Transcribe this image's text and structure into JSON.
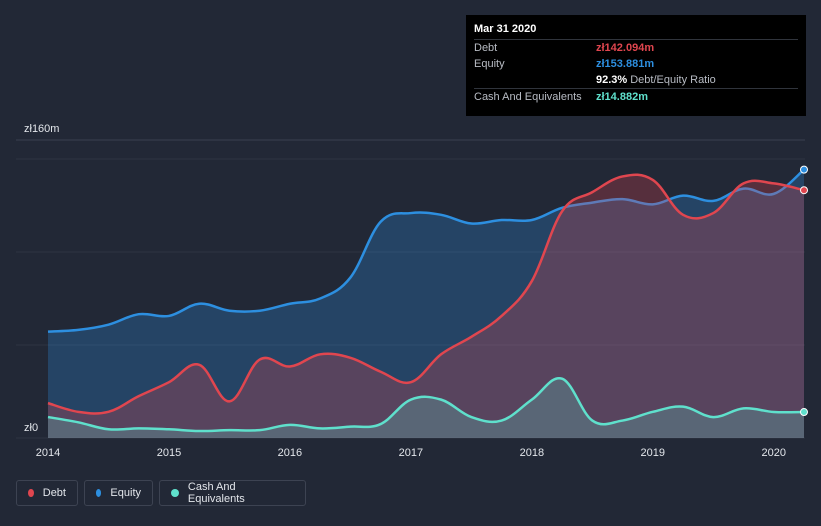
{
  "tooltip": {
    "date": "Mar 31 2020",
    "debt_label": "Debt",
    "debt_value": "zł142.094m",
    "equity_label": "Equity",
    "equity_value": "zł153.881m",
    "ratio_value": "92.3%",
    "ratio_label": "Debt/Equity Ratio",
    "cash_label": "Cash And Equivalents",
    "cash_value": "zł14.882m"
  },
  "legend": {
    "debt": "Debt",
    "equity": "Equity",
    "cash": "Cash And Equivalents"
  },
  "colors": {
    "debt": "#e0464f",
    "equity": "#2d8fe0",
    "cash": "#5fe0cc",
    "background": "#222836"
  },
  "chart_data": {
    "type": "area",
    "y_tick_labels": [
      "zł160m",
      "zł0"
    ],
    "ylim": [
      0,
      160
    ],
    "xlim": [
      2014,
      2020.25
    ],
    "x_ticks": [
      2014,
      2015,
      2016,
      2017,
      2018,
      2019,
      2020
    ],
    "x_tick_labels": [
      "2014",
      "2015",
      "2016",
      "2017",
      "2018",
      "2019",
      "2020"
    ],
    "series": [
      {
        "name": "Debt",
        "color": "#e0464f",
        "x": [
          2014,
          2014.25,
          2014.5,
          2014.75,
          2015,
          2015.25,
          2015.5,
          2015.75,
          2016,
          2016.25,
          2016.5,
          2016.75,
          2017,
          2017.25,
          2017.5,
          2017.75,
          2018,
          2018.25,
          2018.5,
          2018.75,
          2019,
          2019.25,
          2019.5,
          2019.75,
          2020,
          2020.25
        ],
        "values": [
          20,
          15,
          15,
          24,
          32,
          42,
          21,
          45,
          41,
          48,
          46,
          38,
          32,
          48,
          58,
          70,
          90,
          130,
          141,
          150,
          148,
          128,
          129,
          146,
          146,
          142.1
        ]
      },
      {
        "name": "Equity",
        "color": "#2d8fe0",
        "x": [
          2014,
          2014.25,
          2014.5,
          2014.75,
          2015,
          2015.25,
          2015.5,
          2015.75,
          2016,
          2016.25,
          2016.5,
          2016.75,
          2017,
          2017.25,
          2017.5,
          2017.75,
          2018,
          2018.25,
          2018.5,
          2018.75,
          2019,
          2019.25,
          2019.5,
          2019.75,
          2020,
          2020.25
        ],
        "values": [
          61,
          62,
          65,
          71,
          70,
          77,
          73,
          73,
          77,
          80,
          92,
          124,
          129,
          128,
          123,
          125,
          125,
          132,
          135,
          137,
          134,
          139,
          136,
          143,
          140,
          153.9
        ]
      },
      {
        "name": "Cash And Equivalents",
        "color": "#5fe0cc",
        "x": [
          2014,
          2014.25,
          2014.5,
          2014.75,
          2015,
          2015.25,
          2015.5,
          2015.75,
          2016,
          2016.25,
          2016.5,
          2016.75,
          2017,
          2017.25,
          2017.5,
          2017.75,
          2018,
          2018.25,
          2018.5,
          2018.75,
          2019,
          2019.25,
          2019.5,
          2019.75,
          2020,
          2020.25
        ],
        "values": [
          12,
          9,
          5,
          5.5,
          5,
          4,
          4.5,
          4.5,
          7.5,
          5.5,
          6.5,
          8,
          22,
          22,
          12,
          10,
          22,
          34,
          10,
          10,
          15,
          18,
          12,
          17,
          14.9,
          14.9
        ]
      }
    ]
  }
}
